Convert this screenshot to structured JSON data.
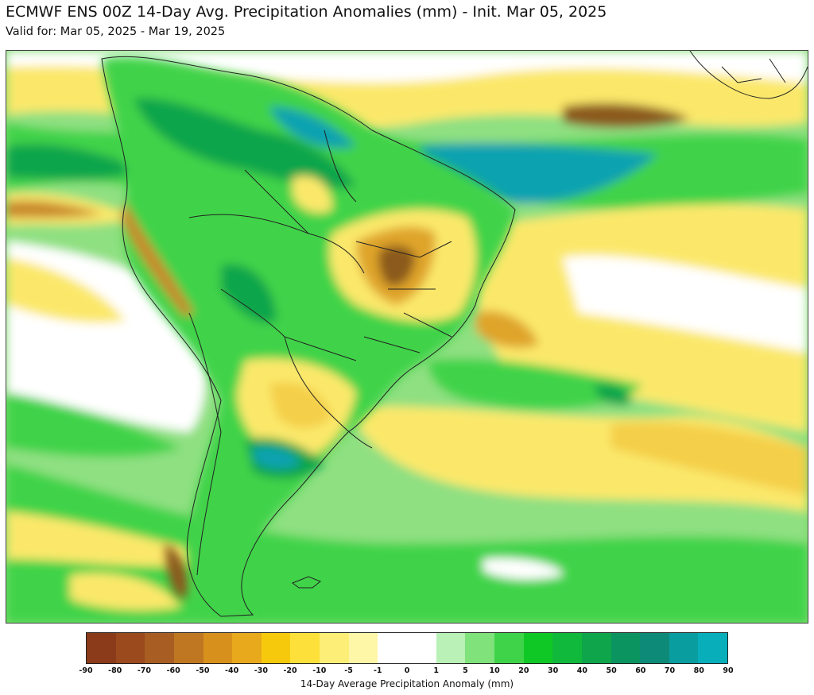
{
  "header": {
    "title": "ECMWF ENS 00Z 14-Day Avg. Precipitation Anomalies (mm) - Init. Mar 05, 2025",
    "subtitle": "Valid for: Mar 05, 2025 - Mar 19, 2025"
  },
  "colorbar": {
    "label": "14-Day Average Precipitation Anomaly (mm)",
    "ticks": [
      "-90",
      "-80",
      "-70",
      "-60",
      "-50",
      "-40",
      "-30",
      "-20",
      "-10",
      "-5",
      "-1",
      "0",
      "1",
      "5",
      "10",
      "20",
      "30",
      "40",
      "50",
      "60",
      "70",
      "80",
      "90"
    ],
    "colors": [
      "#8b3a1a",
      "#9a4a1c",
      "#a85e22",
      "#c07722",
      "#d8901c",
      "#e8a91c",
      "#f7c90c",
      "#fde13a",
      "#fdee78",
      "#fff7a8",
      "#ffffff",
      "#ffffff",
      "#b9f1b6",
      "#7fe27a",
      "#3fd34a",
      "#10c825",
      "#10b83c",
      "#0ea54b",
      "#0c9460",
      "#0d8a78",
      "#0a9da0",
      "#08aeba"
    ]
  },
  "map": {
    "region": "South America",
    "palette": {
      "dry_strong": "#8b5a1e",
      "dry": "#dfa42a",
      "dry_light": "#fbe86b",
      "neutral": "#ffffff",
      "wet_light": "#b9f1b6",
      "wet": "#3fd34a",
      "wet_strong": "#0ea54b",
      "wet_max": "#0aa2b0"
    }
  }
}
